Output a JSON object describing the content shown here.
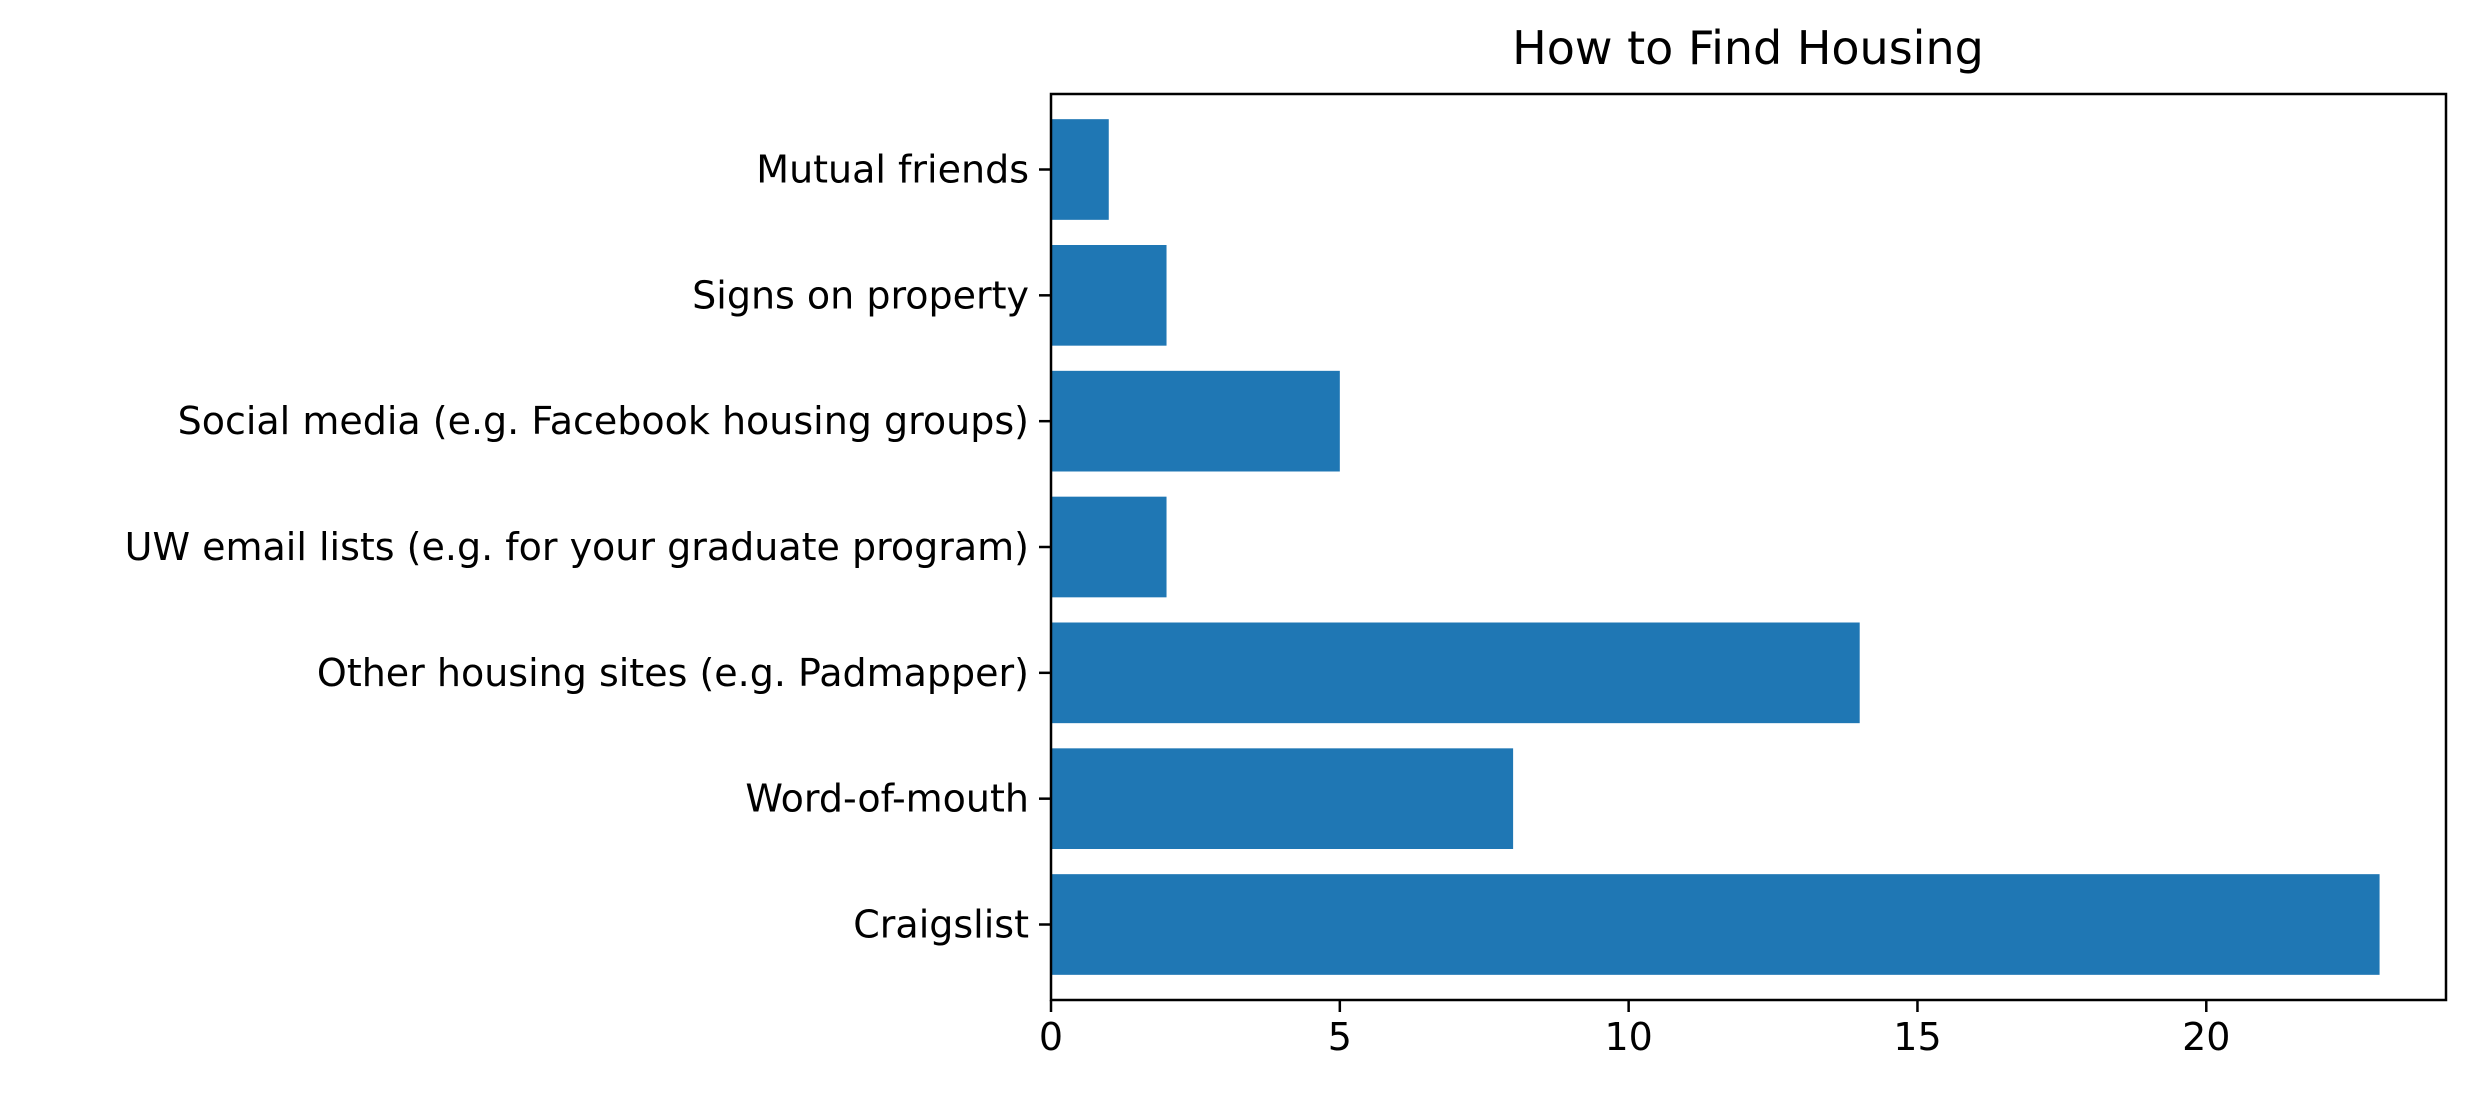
{
  "chart_data": {
    "type": "bar",
    "orientation": "horizontal",
    "title": "How to Find Housing",
    "xlabel": "",
    "ylabel": "",
    "categories": [
      "Craigslist",
      "Word-of-mouth",
      "Other housing sites (e.g. Padmapper)",
      "UW email lists (e.g. for your graduate program)",
      "Social media (e.g. Facebook housing groups)",
      "Signs on property",
      "Mutual friends"
    ],
    "values": [
      23,
      8,
      14,
      2,
      5,
      2,
      1
    ],
    "xlim": [
      0,
      24.15
    ],
    "xticks": [
      0,
      5,
      10,
      15,
      20
    ],
    "grid": false,
    "legend": "none",
    "bar_color": "#1f77b4"
  }
}
